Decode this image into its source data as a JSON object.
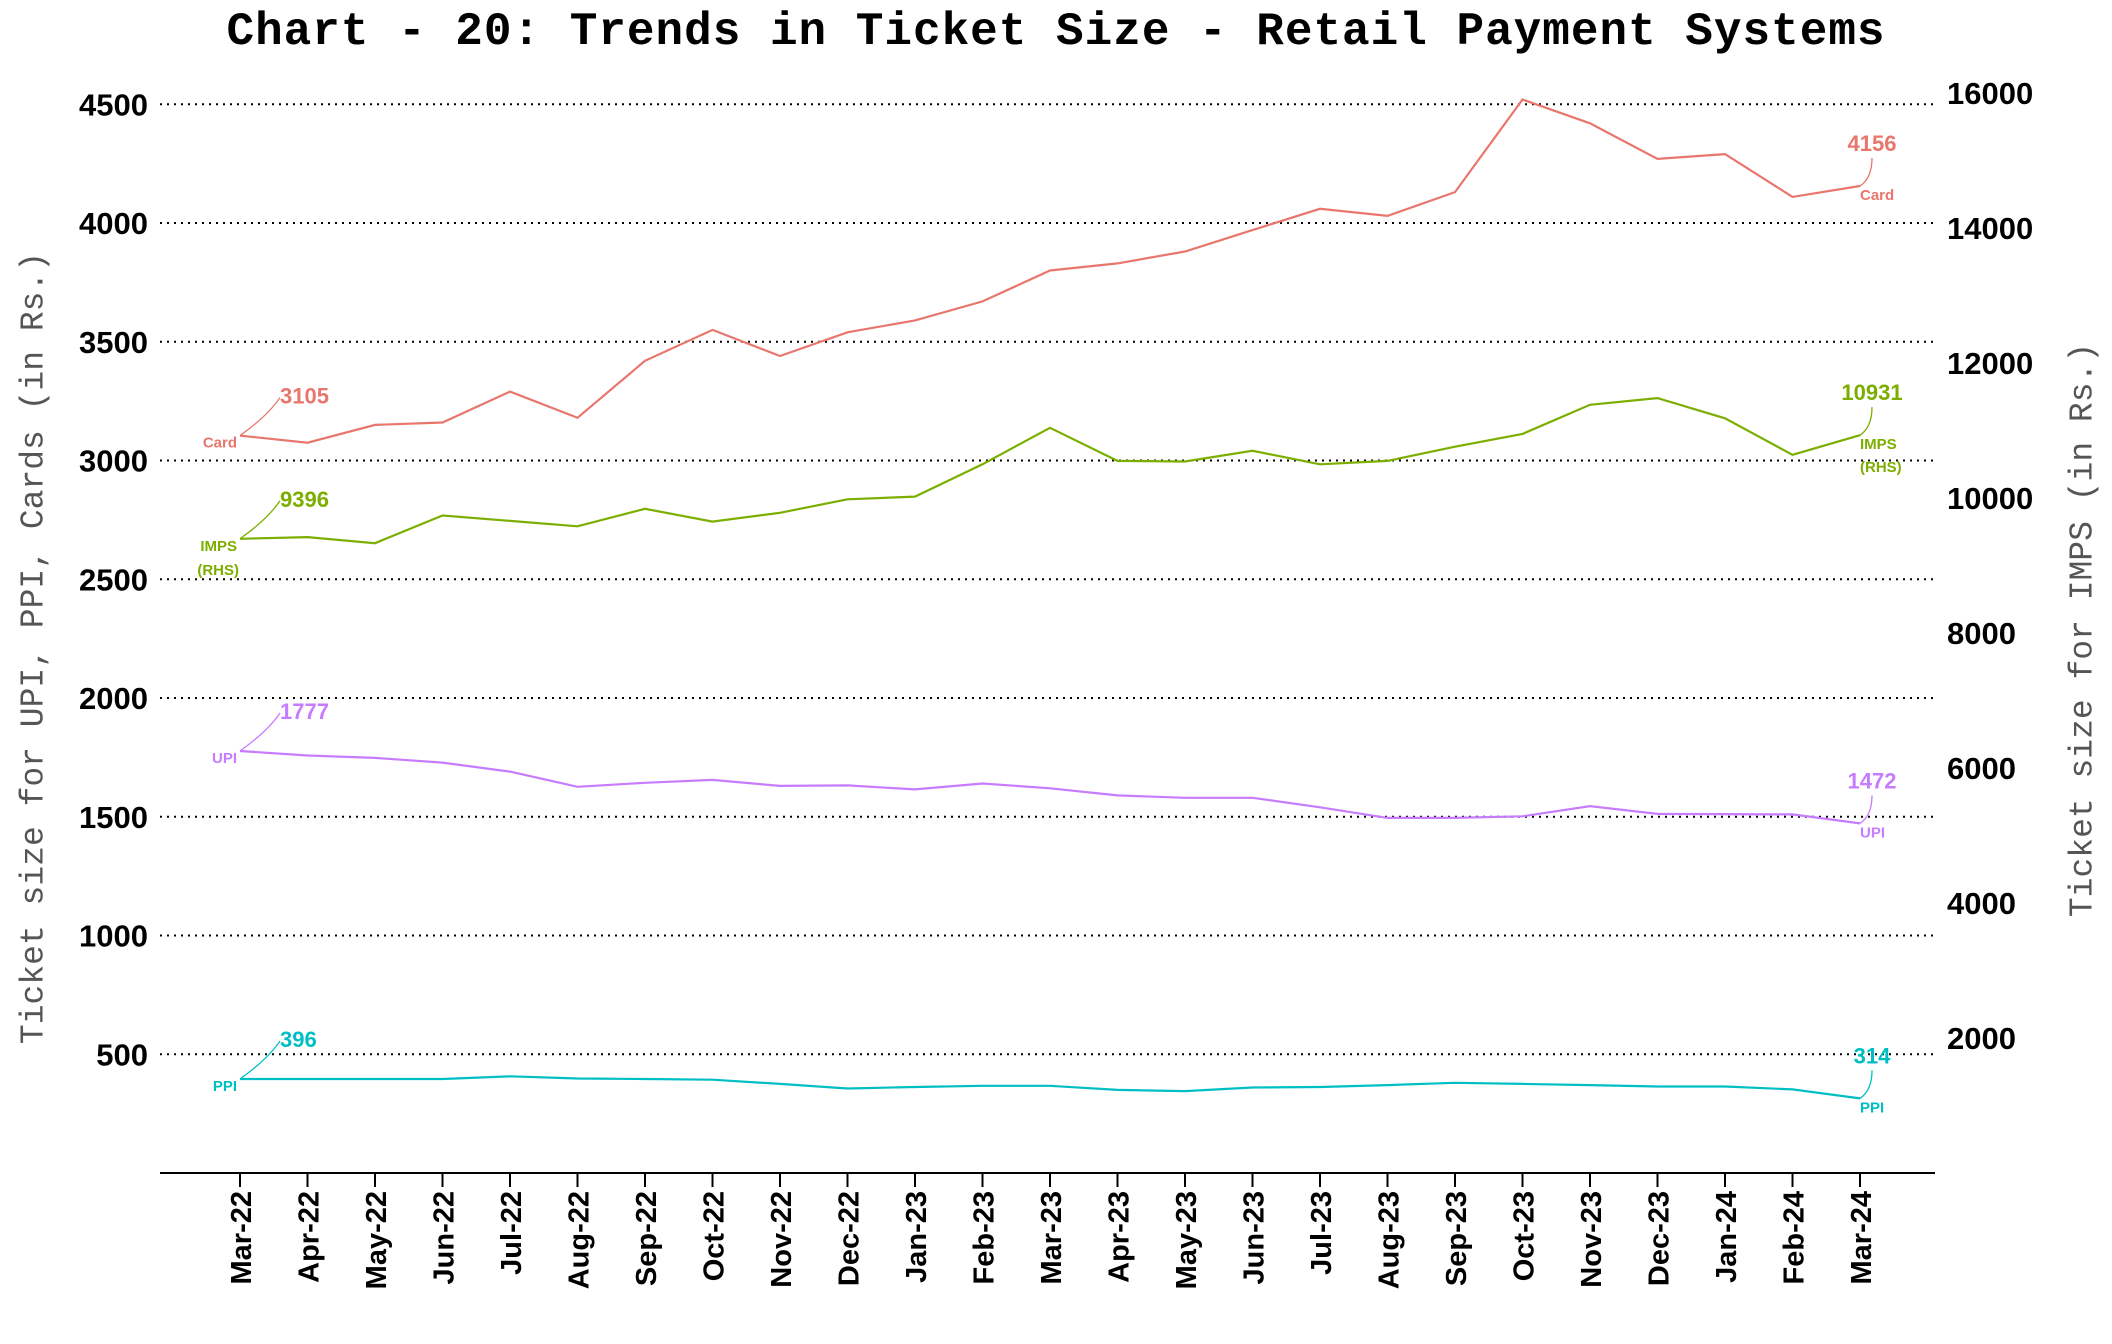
{
  "chart_data": {
    "type": "line",
    "title": "Chart - 20: Trends in Ticket Size - Retail Payment Systems",
    "ylabel_left": "Ticket size for UPI, PPI, Cards (in Rs.)",
    "ylabel_right": "Ticket size for IMPS (in Rs.)",
    "ylim_left": [
      0,
      4700
    ],
    "ylim_right": [
      0,
      16500
    ],
    "yticks_left": [
      500,
      1000,
      1500,
      2000,
      2500,
      3000,
      3500,
      4000,
      4500
    ],
    "yticks_right": [
      2000,
      4000,
      6000,
      8000,
      10000,
      12000,
      14000,
      16000
    ],
    "grid": "horizontal dotted",
    "categories": [
      "Mar-22",
      "Apr-22",
      "May-22",
      "Jun-22",
      "Jul-22",
      "Aug-22",
      "Sep-22",
      "Oct-22",
      "Nov-22",
      "Dec-22",
      "Jan-23",
      "Feb-23",
      "Mar-23",
      "Apr-23",
      "May-23",
      "Jun-23",
      "Jul-23",
      "Aug-23",
      "Sep-23",
      "Oct-23",
      "Nov-23",
      "Dec-23",
      "Jan-24",
      "Feb-24",
      "Mar-24"
    ],
    "series": [
      {
        "name": "Card",
        "axis": "left",
        "color": "#E8766D",
        "values": [
          3105,
          3075,
          3150,
          3160,
          3290,
          3180,
          3420,
          3550,
          3440,
          3540,
          3590,
          3670,
          3800,
          3830,
          3880,
          3970,
          4060,
          4030,
          4130,
          4520,
          4420,
          4270,
          4290,
          4110,
          4156
        ],
        "start_label": "3105",
        "end_label": "4156",
        "start_name": "Card",
        "end_name": "Card"
      },
      {
        "name": "IMPS (RHS)",
        "axis": "right",
        "color": "#7CAE00",
        "values": [
          9396,
          9420,
          9330,
          9740,
          9660,
          9580,
          9840,
          9650,
          9780,
          9980,
          10020,
          10500,
          11040,
          10550,
          10540,
          10700,
          10500,
          10550,
          10760,
          10950,
          11380,
          11480,
          11180,
          10640,
          10931
        ],
        "start_label": "9396",
        "end_label": "10931",
        "start_name": "IMPS",
        "start_name2": "(RHS)",
        "end_name": "IMPS",
        "end_name2": "(RHS)"
      },
      {
        "name": "UPI",
        "axis": "left",
        "color": "#C77CFF",
        "values": [
          1777,
          1758,
          1748,
          1728,
          1690,
          1626,
          1643,
          1655,
          1630,
          1632,
          1615,
          1640,
          1620,
          1590,
          1580,
          1580,
          1540,
          1495,
          1495,
          1502,
          1545,
          1512,
          1511,
          1510,
          1472
        ],
        "start_label": "1777",
        "end_label": "1472",
        "start_name": "UPI",
        "end_name": "UPI"
      },
      {
        "name": "PPI",
        "axis": "left",
        "color": "#00BFC4",
        "values": [
          396,
          396,
          396,
          396,
          407,
          398,
          396,
          393,
          375,
          356,
          362,
          367,
          367,
          350,
          345,
          360,
          362,
          370,
          380,
          375,
          370,
          364,
          364,
          352,
          314
        ],
        "start_label": "396",
        "end_label": "314",
        "start_name": "PPI",
        "end_name": "PPI"
      }
    ]
  }
}
